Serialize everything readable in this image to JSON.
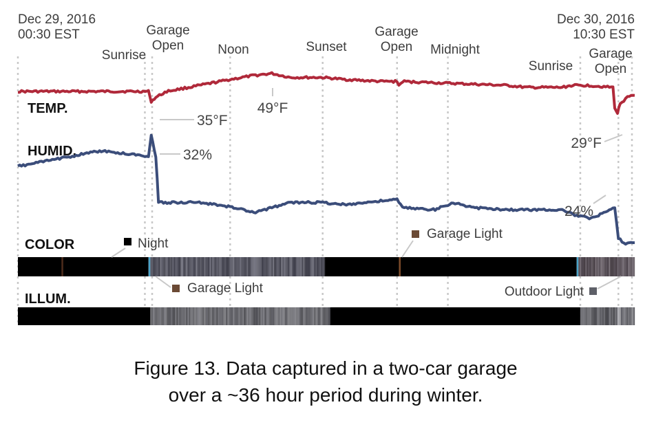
{
  "figure": {
    "caption_line1": "Figure 13. Data captured in a two-car garage",
    "caption_line2": "over a ~36 hour period during winter."
  },
  "colors": {
    "temp": "#b0293a",
    "humid": "#3b4d7a",
    "garage_light_swatch": "#6b4a35",
    "outdoor_light_swatch": "#5e6068",
    "night_swatch": "#000000",
    "gridline": "#c8c8c8"
  },
  "chart_data": {
    "type": "line",
    "x_unit": "hours since Dec 29, 2016 00:30 EST",
    "x_range": [
      0,
      34
    ],
    "start_label": {
      "date": "Dec 29, 2016",
      "time": "00:30 EST"
    },
    "end_label": {
      "date": "Dec 30, 2016",
      "time": "10:30 EST"
    },
    "events": [
      {
        "t": 7.0,
        "label1": "Sunrise",
        "label2": ""
      },
      {
        "t": 7.4,
        "label1": "Garage",
        "label2": "Open"
      },
      {
        "t": 11.7,
        "label1": "Noon",
        "label2": ""
      },
      {
        "t": 16.8,
        "label1": "Sunset",
        "label2": ""
      },
      {
        "t": 20.9,
        "label1": "Garage",
        "label2": "Open"
      },
      {
        "t": 23.7,
        "label1": "Midnight",
        "label2": ""
      },
      {
        "t": 31.0,
        "label1": "Sunrise",
        "label2": ""
      },
      {
        "t": 33.1,
        "label1": "Garage",
        "label2": "Open"
      }
    ],
    "series": [
      {
        "name": "TEMP.",
        "unit": "°F",
        "points": [
          [
            0,
            40
          ],
          [
            7.2,
            40
          ],
          [
            7.35,
            35
          ],
          [
            7.6,
            37
          ],
          [
            8.2,
            40
          ],
          [
            10,
            43
          ],
          [
            11.7,
            46
          ],
          [
            13,
            48
          ],
          [
            14,
            49
          ],
          [
            15,
            47
          ],
          [
            16.8,
            47
          ],
          [
            18,
            46
          ],
          [
            20,
            45
          ],
          [
            20.9,
            45
          ],
          [
            21,
            43
          ],
          [
            21.2,
            45
          ],
          [
            24,
            44
          ],
          [
            27,
            43
          ],
          [
            28,
            42
          ],
          [
            30,
            42
          ],
          [
            30.5,
            43
          ],
          [
            31.5,
            43
          ],
          [
            32.8,
            42
          ],
          [
            32.9,
            32
          ],
          [
            33.05,
            29
          ],
          [
            33.2,
            34
          ],
          [
            33.6,
            37
          ],
          [
            34,
            38
          ]
        ],
        "annotations": [
          {
            "t": 7.35,
            "text": "35°F"
          },
          {
            "t": 14.0,
            "text": "49°F"
          },
          {
            "t": 33.05,
            "text": "29°F"
          }
        ]
      },
      {
        "name": "HUMID.",
        "unit": "%",
        "points": [
          [
            0,
            29
          ],
          [
            3,
            30
          ],
          [
            4.5,
            30.5
          ],
          [
            7.2,
            30
          ],
          [
            7.35,
            32
          ],
          [
            7.6,
            30
          ],
          [
            7.75,
            25.5
          ],
          [
            8.5,
            25.5
          ],
          [
            10,
            25.5
          ],
          [
            12,
            25
          ],
          [
            13,
            24.5
          ],
          [
            14,
            25
          ],
          [
            15,
            25.5
          ],
          [
            16.8,
            25.5
          ],
          [
            18,
            25.3
          ],
          [
            20.9,
            25.8
          ],
          [
            21.2,
            25
          ],
          [
            23,
            24.8
          ],
          [
            24,
            25.5
          ],
          [
            25,
            25
          ],
          [
            27,
            24.8
          ],
          [
            29,
            24.8
          ],
          [
            30,
            24.8
          ],
          [
            30.8,
            24.2
          ],
          [
            31.5,
            24
          ],
          [
            32.4,
            24.5
          ],
          [
            32.9,
            25
          ],
          [
            33.1,
            22
          ],
          [
            33.5,
            21.5
          ],
          [
            34,
            21.6
          ]
        ],
        "annotations": [
          {
            "t": 7.35,
            "text": "32%"
          },
          {
            "t": 32.4,
            "text": "24%"
          }
        ]
      }
    ],
    "strips": [
      {
        "name": "COLOR",
        "segments": [
          {
            "from": 0,
            "to": 7.2,
            "color": "#000000"
          },
          {
            "from": 2.4,
            "to": 2.5,
            "color": "#4a2a1a"
          },
          {
            "from": 7.2,
            "to": 7.3,
            "color": "#4aa3c8"
          },
          {
            "from": 7.3,
            "to": 16.9,
            "color": "#5a5a66"
          },
          {
            "from": 16.9,
            "to": 30.8,
            "color": "#000000"
          },
          {
            "from": 21.0,
            "to": 21.1,
            "color": "#7a4a2a"
          },
          {
            "from": 30.8,
            "to": 30.9,
            "color": "#4aa3c8"
          },
          {
            "from": 30.9,
            "to": 34,
            "color": "#6a5a5e"
          }
        ],
        "callouts": [
          {
            "t": 5.8,
            "text": "Night",
            "swatch": "#000000",
            "side": "above"
          },
          {
            "t": 21.6,
            "text": "Garage Light",
            "swatch": "#6b4a35",
            "side": "above"
          },
          {
            "t": 7.9,
            "text": "Garage Light",
            "swatch": "#6b4a35",
            "side": "below"
          }
        ]
      },
      {
        "name": "ILLUM.",
        "segments": [
          {
            "from": 0,
            "to": 7.3,
            "color": "#000000"
          },
          {
            "from": 7.3,
            "to": 17.2,
            "color": "#7a7a7a"
          },
          {
            "from": 17.2,
            "to": 31.0,
            "color": "#000000"
          },
          {
            "from": 31.0,
            "to": 33.0,
            "color": "#6a6a6a"
          },
          {
            "from": 33.0,
            "to": 33.25,
            "color": "#ffffff"
          },
          {
            "from": 33.25,
            "to": 34,
            "color": "#9a9a9a"
          }
        ],
        "callouts": [
          {
            "t": 33.2,
            "text": "Outdoor Light",
            "swatch": "#5e6068",
            "side": "above-left"
          }
        ]
      }
    ]
  }
}
